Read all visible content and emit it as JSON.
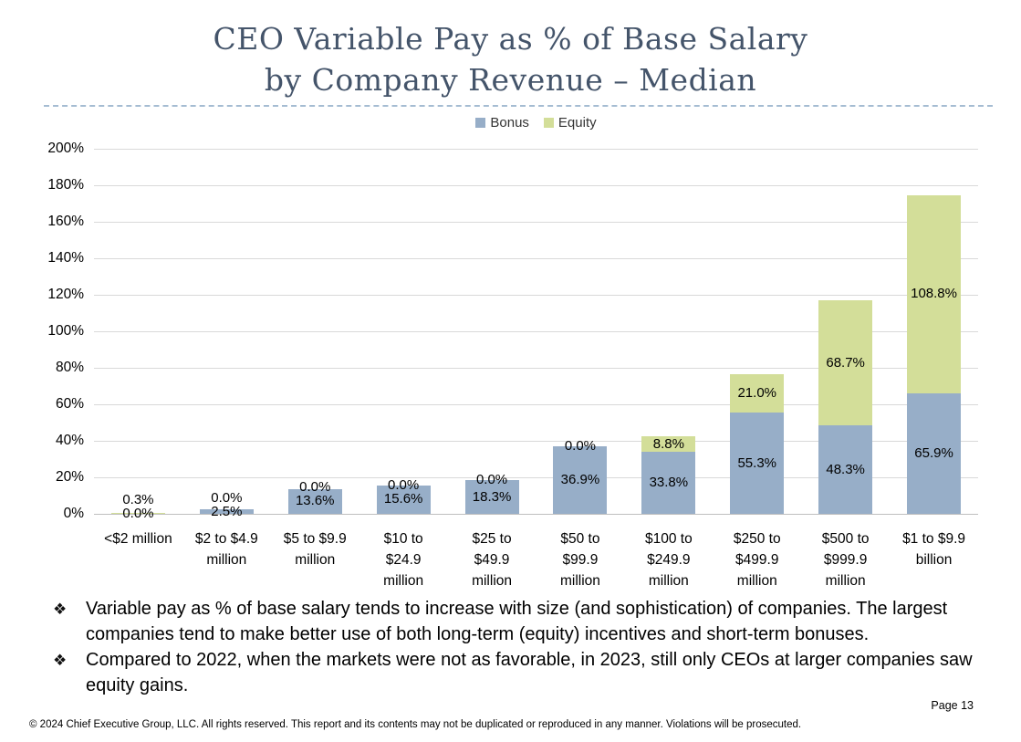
{
  "title": "CEO Variable Pay as % of Base Salary\nby Company Revenue – Median",
  "bullet_glyph": "❖",
  "bullets": [
    "Variable pay as % of base salary tends to increase with size (and sophistication) of companies. The largest companies tend to make better use of both long-term (equity) incentives and short-term bonuses.",
    "Compared to 2022, when the markets were not as favorable, in 2023, still only CEOs at larger companies saw equity gains."
  ],
  "footer": {
    "page_label": "Page 13",
    "copyright": "© 2024 Chief Executive Group, LLC. All rights reserved. This report and its contents may not be duplicated or reproduced in any manner. Violations will be prosecuted."
  },
  "theme": {
    "title_text": "#44546A",
    "divider": "#A5BCD2",
    "gridline": "#D9D9D9",
    "axis_line": "#BFBFBF"
  },
  "chart_data": {
    "type": "bar",
    "stacked": true,
    "title": "CEO Variable Pay as % of Base Salary by Company Revenue – Median",
    "xlabel": "",
    "ylabel": "",
    "ylim": [
      0,
      200
    ],
    "ytick_step": 20,
    "ytick_labels": [
      "0%",
      "20%",
      "40%",
      "60%",
      "80%",
      "100%",
      "120%",
      "140%",
      "160%",
      "180%",
      "200%"
    ],
    "grid": true,
    "legend_position": "top",
    "data_label_format": "one-decimal-percent",
    "categories": [
      "<$2 million",
      "$2 to $4.9\nmillion",
      "$5 to $9.9\nmillion",
      "$10 to\n$24.9\nmillion",
      "$25 to\n$49.9\nmillion",
      "$50 to\n$99.9\nmillion",
      "$100 to\n$249.9\nmillion",
      "$250 to\n$499.9\nmillion",
      "$500 to\n$999.9\nmillion",
      "$1 to $9.9\nbillion"
    ],
    "series": [
      {
        "name": "Bonus",
        "color": "#97AEC8",
        "values": [
          0.0,
          2.5,
          13.6,
          15.6,
          18.3,
          36.9,
          33.8,
          55.3,
          48.3,
          65.9
        ]
      },
      {
        "name": "Equity",
        "color": "#D3DE99",
        "values": [
          0.3,
          0.0,
          0.0,
          0.0,
          0.0,
          0.0,
          8.8,
          21.0,
          68.7,
          108.8
        ]
      }
    ]
  }
}
